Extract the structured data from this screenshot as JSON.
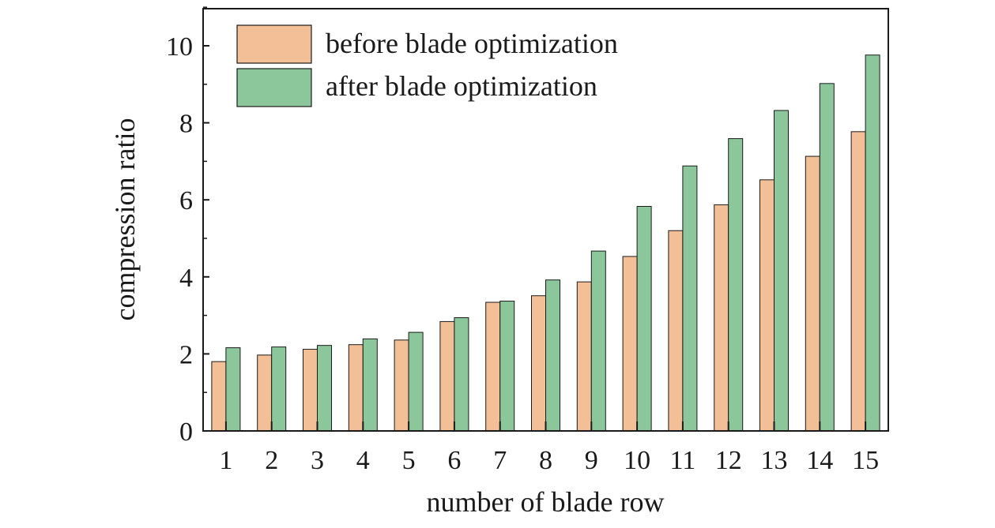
{
  "chart_data": {
    "type": "bar",
    "title": "",
    "xlabel": "number of blade row",
    "ylabel": "compression ratio",
    "categories": [
      "1",
      "2",
      "3",
      "4",
      "5",
      "6",
      "7",
      "8",
      "9",
      "10",
      "11",
      "12",
      "13",
      "14",
      "15"
    ],
    "series": [
      {
        "name": "before blade optimization",
        "color": "#f3bf97",
        "values": [
          1.8,
          1.97,
          2.12,
          2.24,
          2.36,
          2.84,
          3.34,
          3.51,
          3.87,
          4.53,
          5.2,
          5.87,
          6.52,
          7.13,
          7.77
        ]
      },
      {
        "name": "after blade optimization",
        "color": "#8cc79c",
        "values": [
          2.16,
          2.18,
          2.22,
          2.39,
          2.56,
          2.94,
          3.37,
          3.92,
          4.67,
          5.83,
          6.88,
          7.59,
          8.32,
          9.02,
          9.76
        ]
      }
    ],
    "ylim": [
      0,
      11
    ],
    "yticks": [
      0,
      2,
      4,
      6,
      8,
      10
    ],
    "grid": false,
    "legend": "top-left"
  }
}
